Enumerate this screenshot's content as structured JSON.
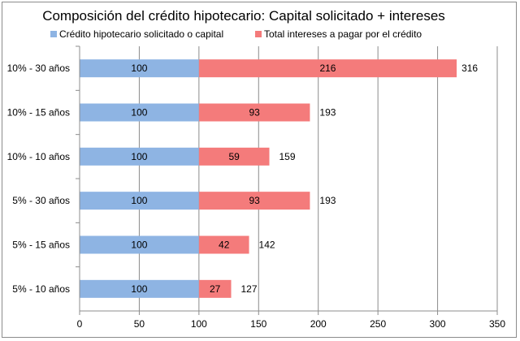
{
  "chart_data": {
    "type": "bar",
    "orientation": "horizontal",
    "stacked": true,
    "title": "Composición del crédito hipotecario: Capital solicitado + intereses",
    "xlabel": "",
    "ylabel": "",
    "xlim": [
      0,
      350
    ],
    "x_ticks": [
      0,
      50,
      100,
      150,
      200,
      250,
      300,
      350
    ],
    "grid": "vertical",
    "legend_position": "top",
    "categories": [
      "10% - 30 años",
      "10% - 15 años",
      "10% - 10 años",
      "5% - 30 años",
      "5% - 15 años",
      "5% - 10 años"
    ],
    "series": [
      {
        "name": "Crédito hipotecario solicitado o capital",
        "color": "#8eb4e3",
        "values": [
          100,
          100,
          100,
          100,
          100,
          100
        ]
      },
      {
        "name": "Total intereses a pagar por el crédito",
        "color": "#f47b7b",
        "values": [
          216,
          93,
          59,
          93,
          42,
          27
        ]
      }
    ],
    "totals": [
      316,
      193,
      159,
      193,
      142,
      127
    ]
  }
}
